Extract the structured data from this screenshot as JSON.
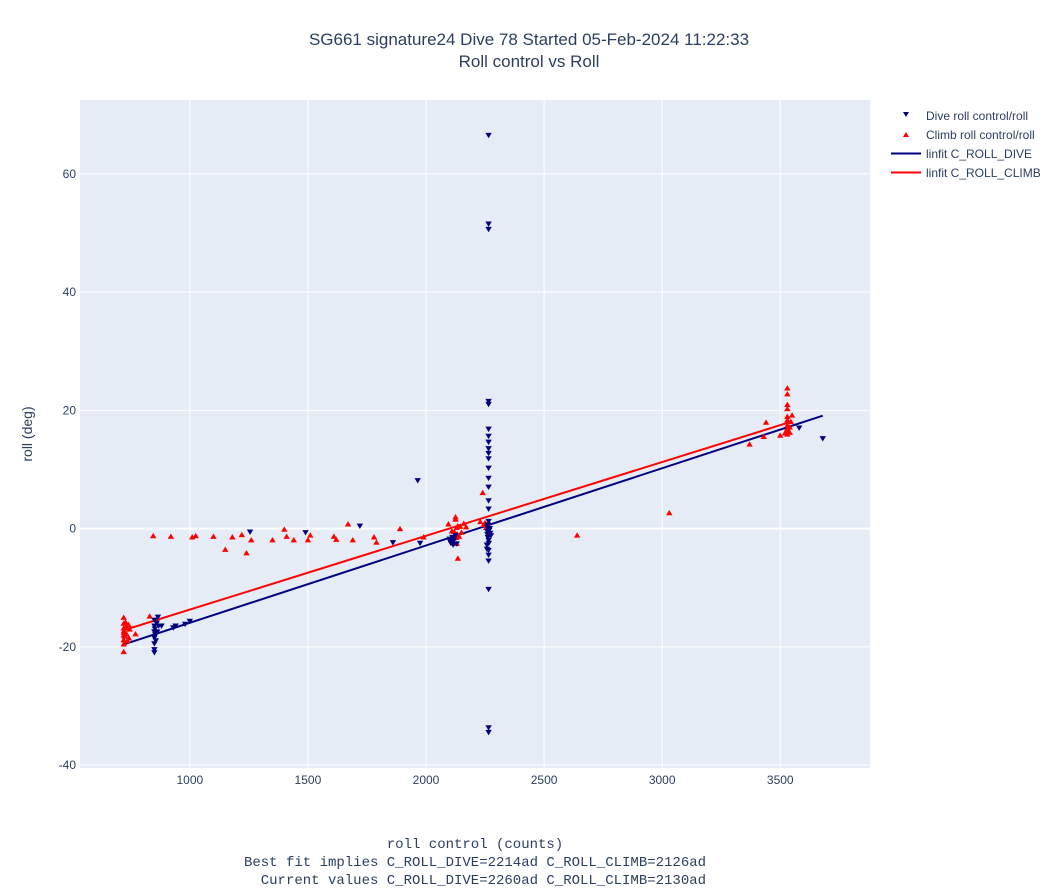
{
  "title": "SG661 signature24 Dive 78 Started 05-Feb-2024 11:22:33",
  "subtitle": "Roll control vs Roll",
  "xlabel_lines": [
    "roll control (counts)",
    "Best fit implies C_ROLL_DIVE=2214ad C_ROLL_CLIMB=2126ad",
    "  Current values C_ROLL_DIVE=2260ad C_ROLL_CLIMB=2130ad"
  ],
  "ylabel": "roll (deg)",
  "colors": {
    "dive": "#00007f",
    "climb": "#ff0000",
    "plot_bg": "#e5ecf6",
    "grid": "#ffffff"
  },
  "legend": [
    {
      "label": "Dive roll control/roll",
      "kind": "triangle-down",
      "color": "#00007f"
    },
    {
      "label": "Climb roll control/roll",
      "kind": "triangle-up",
      "color": "#ff0000"
    },
    {
      "label": "linfit C_ROLL_DIVE",
      "kind": "line",
      "color": "#00007f"
    },
    {
      "label": "linfit C_ROLL_CLIMB",
      "kind": "line",
      "color": "#ff0000"
    }
  ],
  "chart_data": {
    "type": "scatter",
    "xlim": [
      535,
      3880
    ],
    "ylim": [
      -40.5,
      72.5
    ],
    "xticks": [
      1000,
      1500,
      2000,
      2500,
      3000,
      3500
    ],
    "yticks": [
      -40,
      -20,
      0,
      20,
      40,
      60
    ],
    "grid": true,
    "legend_position": "top-right, outside plot",
    "series": [
      {
        "name": "Dive roll control/roll",
        "marker": "triangle-down",
        "points": [
          [
            850,
            -15.5
          ],
          [
            850,
            -16.5
          ],
          [
            850,
            -17.5
          ],
          [
            850,
            -18.5
          ],
          [
            850,
            -19.5
          ],
          [
            850,
            -20.5
          ],
          [
            850,
            -21
          ],
          [
            852,
            -17
          ],
          [
            854,
            -18
          ],
          [
            856,
            -19
          ],
          [
            860,
            -16
          ],
          [
            862,
            -17.5
          ],
          [
            865,
            -15
          ],
          [
            868,
            -16.5
          ],
          [
            880,
            -16.5
          ],
          [
            930,
            -16.8
          ],
          [
            940,
            -16.5
          ],
          [
            980,
            -16.2
          ],
          [
            1000,
            -15.7
          ],
          [
            1255,
            -0.6
          ],
          [
            1490,
            -0.7
          ],
          [
            1720,
            0.4
          ],
          [
            1860,
            -2.4
          ],
          [
            1965,
            8.1
          ],
          [
            1975,
            -2.5
          ],
          [
            2100,
            -1.8
          ],
          [
            2102,
            -2.2
          ],
          [
            2105,
            -2.5
          ],
          [
            2108,
            -2
          ],
          [
            2110,
            -2.3
          ],
          [
            2112,
            -1.5
          ],
          [
            2115,
            -2.8
          ],
          [
            2118,
            -2
          ],
          [
            2125,
            -1.2
          ],
          [
            2130,
            -2.6
          ],
          [
            2258,
            -2.8
          ],
          [
            2258,
            -3.5
          ],
          [
            2260,
            0.2
          ],
          [
            2260,
            -0.5
          ],
          [
            2260,
            -1
          ],
          [
            2262,
            0.6
          ],
          [
            2262,
            -1.5
          ],
          [
            2264,
            -0.2
          ],
          [
            2265,
            -2
          ],
          [
            2266,
            -2.5
          ],
          [
            2268,
            -0.3
          ],
          [
            2270,
            0
          ],
          [
            2272,
            -0.8
          ],
          [
            2275,
            -1.2
          ],
          [
            2265,
            66.5
          ],
          [
            2265,
            51.5
          ],
          [
            2265,
            50.6
          ],
          [
            2265,
            21.5
          ],
          [
            2265,
            21
          ],
          [
            2265,
            16.8
          ],
          [
            2265,
            15.6
          ],
          [
            2265,
            14.6
          ],
          [
            2265,
            13.5
          ],
          [
            2265,
            12.7
          ],
          [
            2265,
            11.8
          ],
          [
            2265,
            10.2
          ],
          [
            2265,
            8.5
          ],
          [
            2265,
            7
          ],
          [
            2265,
            4.7
          ],
          [
            2265,
            3.3
          ],
          [
            2265,
            1.2
          ],
          [
            2265,
            -3.7
          ],
          [
            2265,
            -4.5
          ],
          [
            2265,
            -5.5
          ],
          [
            2265,
            -10.3
          ],
          [
            2265,
            -33.7
          ],
          [
            2265,
            -34.5
          ],
          [
            3580,
            17
          ],
          [
            3680,
            15.2
          ]
        ]
      },
      {
        "name": "Climb roll control/roll",
        "marker": "triangle-up",
        "points": [
          [
            720,
            -15
          ],
          [
            720,
            -16
          ],
          [
            720,
            -16.8
          ],
          [
            720,
            -17.5
          ],
          [
            720,
            -18
          ],
          [
            720,
            -18.8
          ],
          [
            720,
            -19.5
          ],
          [
            720,
            -20.8
          ],
          [
            722,
            -17.2
          ],
          [
            725,
            -18.2
          ],
          [
            728,
            -15.8
          ],
          [
            730,
            -16.5
          ],
          [
            732,
            -17.8
          ],
          [
            735,
            -19
          ],
          [
            740,
            -16.2
          ],
          [
            742,
            -18.5
          ],
          [
            745,
            -17
          ],
          [
            770,
            -17.8
          ],
          [
            830,
            -14.8
          ],
          [
            845,
            -1.2
          ],
          [
            920,
            -1.3
          ],
          [
            1010,
            -1.4
          ],
          [
            1025,
            -1.2
          ],
          [
            1100,
            -1.3
          ],
          [
            1150,
            -3.5
          ],
          [
            1180,
            -1.4
          ],
          [
            1220,
            -1
          ],
          [
            1240,
            -4.1
          ],
          [
            1260,
            -1.9
          ],
          [
            1350,
            -1.9
          ],
          [
            1400,
            -0.1
          ],
          [
            1410,
            -1.3
          ],
          [
            1440,
            -1.9
          ],
          [
            1500,
            -1.9
          ],
          [
            1510,
            -1.1
          ],
          [
            1610,
            -1.3
          ],
          [
            1620,
            -1.8
          ],
          [
            1670,
            0.8
          ],
          [
            1690,
            -1.9
          ],
          [
            1780,
            -1.4
          ],
          [
            1790,
            -2.3
          ],
          [
            1890,
            0
          ],
          [
            1990,
            -1.4
          ],
          [
            2095,
            0.8
          ],
          [
            2110,
            -0.4
          ],
          [
            2115,
            -1.6
          ],
          [
            2120,
            -0.5
          ],
          [
            2125,
            1.6
          ],
          [
            2125,
            2
          ],
          [
            2128,
            -1.5
          ],
          [
            2130,
            -2.5
          ],
          [
            2130,
            0.2
          ],
          [
            2132,
            -0.9
          ],
          [
            2135,
            0.5
          ],
          [
            2135,
            -5
          ],
          [
            2140,
            -1.3
          ],
          [
            2145,
            0.4
          ],
          [
            2150,
            -0.6
          ],
          [
            2160,
            0.9
          ],
          [
            2170,
            0.3
          ],
          [
            2230,
            1.2
          ],
          [
            2240,
            6.1
          ],
          [
            2245,
            0.7
          ],
          [
            2250,
            1
          ],
          [
            2255,
            0.2
          ],
          [
            2640,
            -1.1
          ],
          [
            3030,
            2.7
          ],
          [
            3370,
            14.3
          ],
          [
            3430,
            15.6
          ],
          [
            3440,
            18
          ],
          [
            3500,
            15.8
          ],
          [
            3520,
            16.2
          ],
          [
            3530,
            16.5
          ],
          [
            3530,
            16
          ],
          [
            3530,
            17
          ],
          [
            3530,
            17.5
          ],
          [
            3530,
            18.4
          ],
          [
            3530,
            19
          ],
          [
            3530,
            20.3
          ],
          [
            3530,
            21
          ],
          [
            3530,
            22.8
          ],
          [
            3530,
            23.8
          ],
          [
            3540,
            16.3
          ],
          [
            3540,
            17.2
          ],
          [
            3545,
            18.1
          ],
          [
            3550,
            19.2
          ]
        ]
      }
    ],
    "fits": [
      {
        "name": "linfit C_ROLL_DIVE",
        "x": [
          720,
          3680
        ],
        "y": [
          -19.6,
          19.1
        ]
      },
      {
        "name": "linfit C_ROLL_CLIMB",
        "x": [
          720,
          3540
        ],
        "y": [
          -17.2,
          18.0
        ]
      }
    ]
  }
}
